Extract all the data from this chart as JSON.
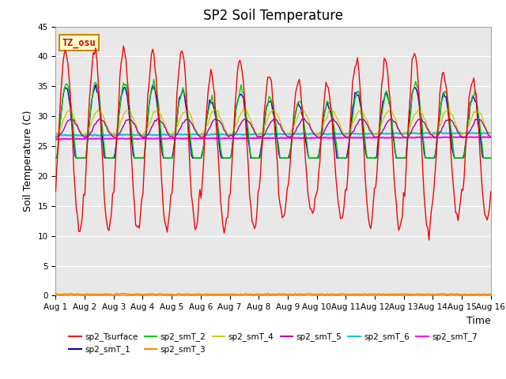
{
  "title": "SP2 Soil Temperature",
  "ylabel": "Soil Temperature (C)",
  "xlabel": "Time",
  "ylim": [
    0,
    45
  ],
  "yticks": [
    0,
    5,
    10,
    15,
    20,
    25,
    30,
    35,
    40,
    45
  ],
  "xtick_labels": [
    "Aug 1",
    "Aug 2",
    "Aug 3",
    "Aug 4",
    "Aug 5",
    "Aug 6",
    "Aug 7",
    "Aug 8",
    "Aug 9",
    "Aug 10",
    "Aug 11",
    "Aug 12",
    "Aug 13",
    "Aug 14",
    "Aug 15",
    "Aug 16"
  ],
  "series_colors": {
    "sp2_Tsurface": "#ff0000",
    "sp2_smT_1": "#0000cc",
    "sp2_smT_2": "#00cc00",
    "sp2_smT_3": "#ff8800",
    "sp2_smT_4": "#cccc00",
    "sp2_smT_5": "#aa00aa",
    "sp2_smT_6": "#00cccc",
    "sp2_smT_7": "#ff00ff"
  },
  "tz_osu_label": "TZ_osu",
  "tz_osu_color": "#cc0000",
  "tz_osu_bg": "#ffffcc",
  "tz_osu_border": "#cc8800",
  "plot_bg": "#e8e8e8",
  "fig_bg": "#ffffff",
  "title_fontsize": 12,
  "label_fontsize": 9,
  "tick_fontsize": 7.5
}
